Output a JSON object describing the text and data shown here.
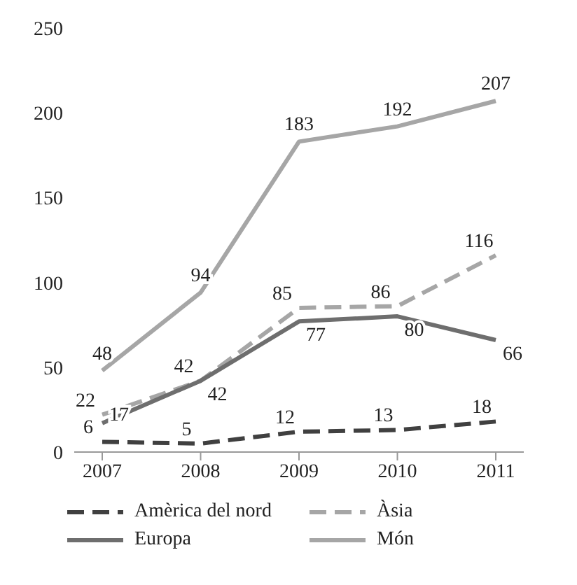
{
  "chart_data": {
    "type": "line",
    "categories": [
      "2007",
      "2008",
      "2009",
      "2010",
      "2011"
    ],
    "series": [
      {
        "name": "Amèrica del nord",
        "color": "#404040",
        "line_style": "dashed",
        "values": [
          6,
          5,
          12,
          13,
          18
        ]
      },
      {
        "name": "Àsia",
        "color": "#a6a6a6",
        "line_style": "dashed",
        "values": [
          22,
          42,
          85,
          86,
          116
        ]
      },
      {
        "name": "Europa",
        "color": "#6e6e6e",
        "line_style": "solid",
        "values": [
          17,
          42,
          77,
          80,
          66
        ]
      },
      {
        "name": "Món",
        "color": "#a6a6a6",
        "line_style": "solid",
        "values": [
          48,
          94,
          183,
          192,
          207
        ]
      }
    ],
    "ylim": [
      0,
      250
    ],
    "yticks": [
      0,
      50,
      100,
      150,
      200,
      250
    ],
    "legend": "bottom",
    "marker": "none",
    "data_labels": true
  }
}
